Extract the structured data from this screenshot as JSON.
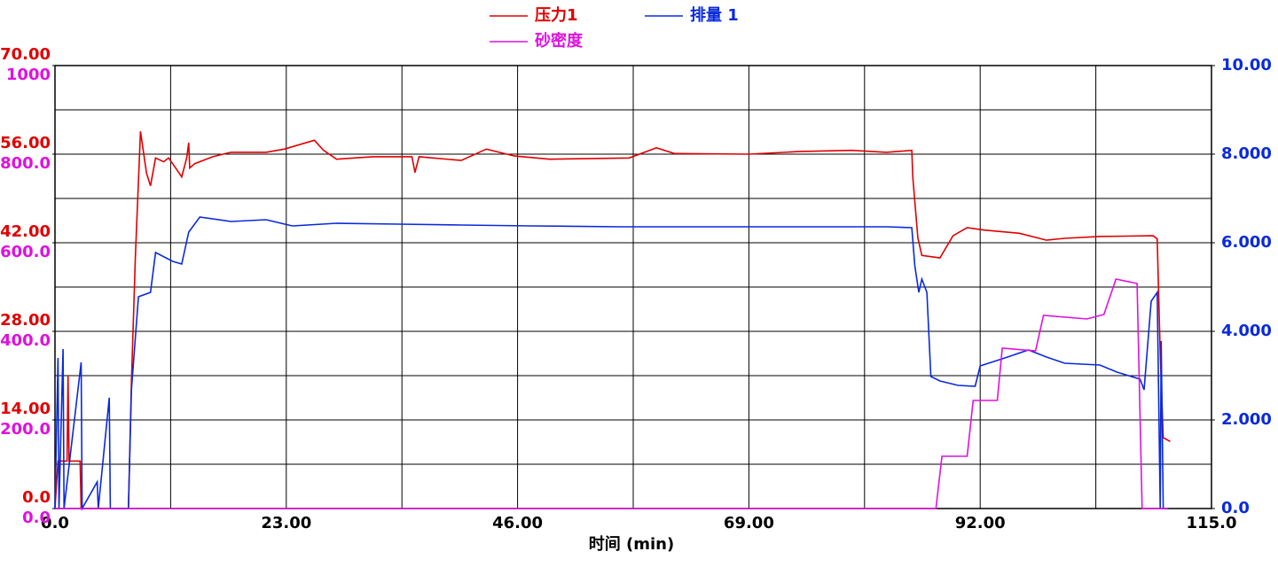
{
  "chart_data": {
    "type": "line",
    "x_label": "时间 (min)",
    "xlim": [
      0,
      115
    ],
    "xticks": [
      {
        "value": 0,
        "label": "0.0"
      },
      {
        "value": 23,
        "label": "23.00"
      },
      {
        "value": 46,
        "label": "46.00"
      },
      {
        "value": 69,
        "label": "69.00"
      },
      {
        "value": 92,
        "label": "92.00"
      },
      {
        "value": 115,
        "label": "115.0"
      }
    ],
    "ylim": [
      0,
      70
    ],
    "yticks": [
      {
        "value": 0,
        "label": "0.0"
      },
      {
        "value": 14,
        "label": "14.00"
      },
      {
        "value": 28,
        "label": "28.00"
      },
      {
        "value": 42,
        "label": "42.00"
      },
      {
        "value": 56,
        "label": "56.00"
      },
      {
        "value": 70,
        "label": "70.00"
      }
    ],
    "y3lim": [
      0,
      1000
    ],
    "y3ticks": [
      {
        "value": 0,
        "label": "0.0"
      },
      {
        "value": 200,
        "label": "200.0"
      },
      {
        "value": 400,
        "label": "400.0"
      },
      {
        "value": 600,
        "label": "600.0"
      },
      {
        "value": 800,
        "label": "800.0"
      },
      1000
    ],
    "y2lim": [
      0,
      10
    ],
    "y2ticks": [
      {
        "value": 0,
        "label": "0.0"
      },
      {
        "value": 2,
        "label": "2.000"
      },
      {
        "value": 4,
        "label": "4.000"
      },
      {
        "value": 6,
        "label": "6.000"
      },
      {
        "value": 8,
        "label": "8.000"
      },
      {
        "value": 10,
        "label": "10.00"
      }
    ],
    "grid": true,
    "minor_grid": true,
    "legend": "top",
    "series": [
      {
        "name": "压力1",
        "color": "#e00000",
        "axis": "y",
        "x": [
          0,
          0.3,
          1.2,
          1.3,
          1.4,
          2.5,
          2.6,
          7.3,
          7.6,
          8.0,
          8.5,
          9.1,
          9.5,
          10.0,
          10.8,
          11.3,
          12.0,
          12.6,
          13.1,
          13.3,
          13.4,
          13.9,
          15.7,
          17.5,
          21.0,
          22.8,
          25.8,
          26.7,
          28.0,
          31.6,
          35.5,
          35.8,
          36.2,
          40.4,
          42.9,
          45.7,
          49.2,
          57.1,
          59.8,
          61.6,
          69.0,
          73.9,
          79.2,
          82.7,
          85.2,
          85.3,
          85.8,
          86.2,
          88.0,
          89.3,
          90.7,
          92.4,
          95.9,
          98.6,
          100.4,
          103.9,
          109.2,
          109.6,
          109.9,
          110.2,
          110.9
        ],
        "values": [
          0,
          7.5,
          7.5,
          21,
          7.5,
          7.5,
          0,
          0,
          20,
          40,
          59.6,
          53,
          51,
          55.4,
          54.8,
          55.4,
          53.8,
          52.4,
          55.4,
          57.8,
          53.8,
          54.5,
          55.6,
          56.3,
          56.3,
          56.8,
          58.2,
          56.6,
          55.2,
          55.6,
          55.6,
          53.1,
          55.6,
          55,
          56.8,
          55.7,
          55.2,
          55.4,
          57,
          56.1,
          56,
          56.4,
          56.6,
          56.3,
          56.6,
          52.4,
          42.8,
          40,
          39.6,
          43.1,
          44.4,
          44,
          43.5,
          42.4,
          42.7,
          43,
          43.1,
          42.6,
          24.5,
          11.2,
          10.6
        ]
      },
      {
        "name": "排量 1",
        "color": "#0a2adc",
        "axis": "y2",
        "x": [
          0,
          0.3,
          0.4,
          0.8,
          0.9,
          2.6,
          2.7,
          4.2,
          4.3,
          5.4,
          5.5,
          7.3,
          7.6,
          8.3,
          9.5,
          10.0,
          11.7,
          12.6,
          13.3,
          14.4,
          17.5,
          21.0,
          23.6,
          28.0,
          34.2,
          40.4,
          47.4,
          56.3,
          69.0,
          82.7,
          85.2,
          85.5,
          85.9,
          86.2,
          86.7,
          87.1,
          88.0,
          89.8,
          91.5,
          92.0,
          94.2,
          96.8,
          98.6,
          100.4,
          103.9,
          105.6,
          107.9,
          108.3,
          109.0,
          109.6,
          109.9,
          110.0,
          110.2,
          110.7
        ],
        "values": [
          0,
          3.4,
          0,
          3.6,
          0,
          3.3,
          0,
          0.6,
          0,
          2.5,
          0,
          0,
          2.68,
          4.78,
          4.88,
          5.78,
          5.58,
          5.52,
          6.24,
          6.58,
          6.48,
          6.52,
          6.38,
          6.44,
          6.42,
          6.4,
          6.38,
          6.36,
          6.36,
          6.36,
          6.34,
          5.48,
          4.88,
          5.18,
          4.88,
          2.98,
          2.88,
          2.78,
          2.76,
          3.22,
          3.38,
          3.58,
          3.42,
          3.28,
          3.24,
          3.08,
          2.92,
          2.68,
          4.68,
          4.88,
          0,
          3.78,
          0,
          0
        ]
      },
      {
        "name": "砂密度",
        "color": "#e010e0",
        "axis": "y3",
        "x": [
          0,
          87.6,
          88.2,
          90.7,
          91.3,
          93.7,
          94.2,
          97.5,
          98.3,
          102.6,
          104.3,
          105.5,
          107.6,
          108.1,
          110.7
        ],
        "values": [
          0,
          0,
          118,
          118,
          244,
          244,
          362,
          356,
          436,
          428,
          438,
          518,
          508,
          0,
          0
        ]
      }
    ]
  }
}
